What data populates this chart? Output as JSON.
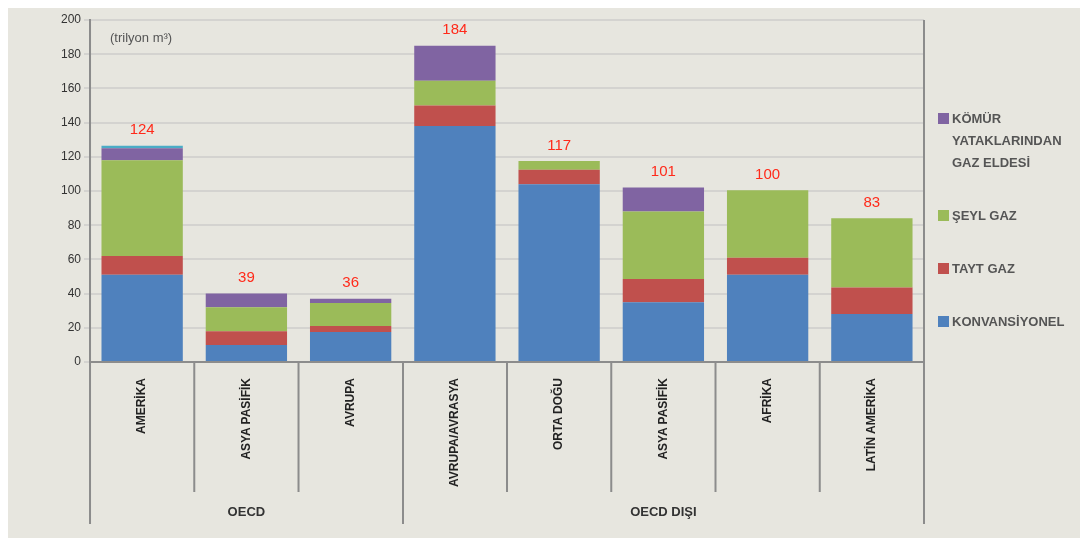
{
  "chart_data": {
    "type": "bar",
    "stacked": true,
    "categories": [
      "AMERİKA",
      "ASYA PASİFİK",
      "AVRUPA",
      "AVRUPA/AVRASYA",
      "ORTA DOĞU",
      "ASYA PASİFİK",
      "AFRİKA",
      "LATİN AMERİKA"
    ],
    "series": [
      {
        "name": "KONVANSİYONEL",
        "color": "#4f81bd",
        "values": [
          51,
          10,
          17.5,
          138,
          104,
          35,
          51,
          28
        ]
      },
      {
        "name": "TAYT GAZ",
        "color": "#c0504d",
        "values": [
          11,
          8,
          3.5,
          12,
          8.5,
          13.5,
          10,
          15.5
        ]
      },
      {
        "name": "ŞEYL GAZ",
        "color": "#9bbb59",
        "values": [
          56,
          14,
          13.5,
          14.5,
          5,
          39.5,
          39.5,
          40.5
        ]
      },
      {
        "name": "KÖMÜR YATAKLARINDAN GAZ ELDESİ",
        "color": "#8064a2",
        "values": [
          7,
          8,
          2.5,
          20.5,
          0,
          14,
          0,
          0
        ]
      },
      {
        "color": "#4bacc6",
        "values": [
          1.5,
          0,
          0,
          0,
          0,
          0,
          0,
          0
        ]
      }
    ],
    "totals": [
      "124",
      "39",
      "36",
      "184",
      "117",
      "101",
      "100",
      "83"
    ],
    "annotations": [
      "(trilyon m³)",
      "OECD",
      "OECD DIŞI"
    ],
    "ylim": [
      0,
      200
    ],
    "yticks": [
      0,
      20,
      40,
      60,
      80,
      100,
      120,
      140,
      160,
      180,
      200
    ],
    "grid": "y",
    "legend": "right"
  }
}
